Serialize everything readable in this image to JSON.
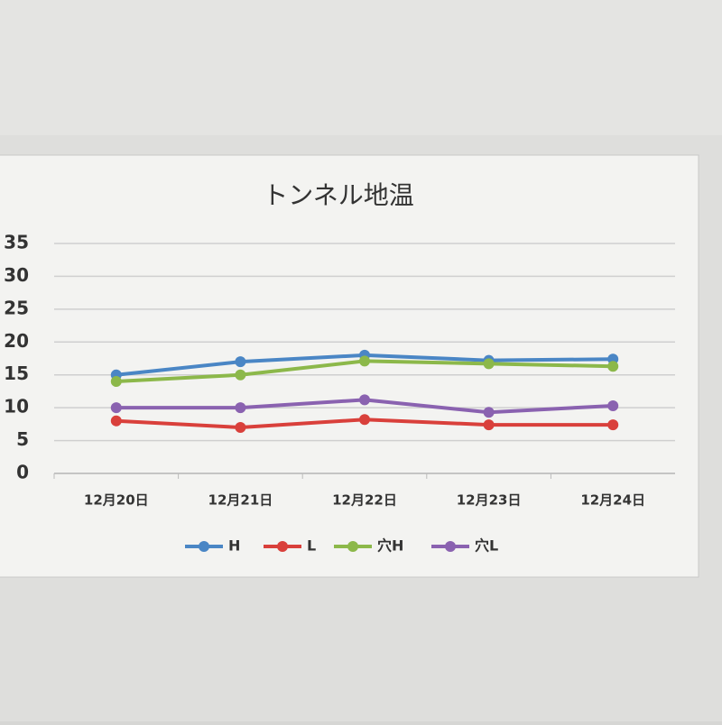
{
  "chart_data": {
    "type": "line",
    "title": "トンネル地温",
    "categories": [
      "12月20日",
      "12月21日",
      "12月22日",
      "12月23日",
      "12月24日"
    ],
    "series": [
      {
        "name": "H",
        "color": "#4a86c5",
        "values": [
          15,
          17,
          18,
          17.2,
          17.4
        ]
      },
      {
        "name": "L",
        "color": "#d9403b",
        "values": [
          8,
          7,
          8.2,
          7.4,
          7.4
        ]
      },
      {
        "name": "穴H",
        "color": "#8cb84a",
        "values": [
          14,
          15,
          17.1,
          16.7,
          16.3
        ]
      },
      {
        "name": "穴L",
        "color": "#8a62b0",
        "values": [
          10,
          10,
          11.2,
          9.3,
          10.3
        ]
      }
    ],
    "ylim": [
      0,
      35
    ],
    "yticks": [
      0,
      5,
      10,
      15,
      20,
      25,
      30,
      35
    ],
    "grid": true,
    "legend": "bottom"
  }
}
